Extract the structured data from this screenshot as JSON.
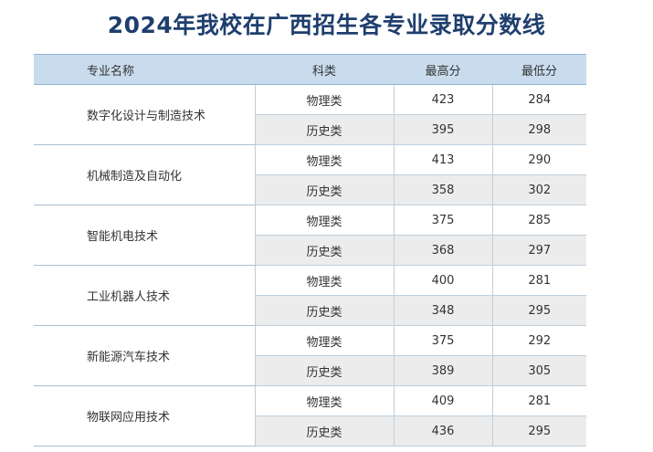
{
  "title": "2024年我校在广西招生各专业录取分数线",
  "table": {
    "headers": [
      "专业名称",
      "科类",
      "最高分",
      "最低分"
    ],
    "rows": [
      {
        "major": "数字化设计与制造技术",
        "entries": [
          {
            "category": "物理类",
            "max": "423",
            "min": "284"
          },
          {
            "category": "历史类",
            "max": "395",
            "min": "298"
          }
        ]
      },
      {
        "major": "机械制造及自动化",
        "entries": [
          {
            "category": "物理类",
            "max": "413",
            "min": "290"
          },
          {
            "category": "历史类",
            "max": "358",
            "min": "302"
          }
        ]
      },
      {
        "major": "智能机电技术",
        "entries": [
          {
            "category": "物理类",
            "max": "375",
            "min": "285"
          },
          {
            "category": "历史类",
            "max": "368",
            "min": "297"
          }
        ]
      },
      {
        "major": "工业机器人技术",
        "entries": [
          {
            "category": "物理类",
            "max": "400",
            "min": "281"
          },
          {
            "category": "历史类",
            "max": "348",
            "min": "295"
          }
        ]
      },
      {
        "major": "新能源汽车技术",
        "entries": [
          {
            "category": "物理类",
            "max": "375",
            "min": "292"
          },
          {
            "category": "历史类",
            "max": "389",
            "min": "305"
          }
        ]
      },
      {
        "major": "物联网应用技术",
        "entries": [
          {
            "category": "物理类",
            "max": "409",
            "min": "281"
          },
          {
            "category": "历史类",
            "max": "436",
            "min": "295"
          }
        ]
      }
    ]
  },
  "colors": {
    "title": "#1f3f6e",
    "header_bg": "#c9dced",
    "alt_row_bg": "#ececec",
    "border": "#bfcfdd"
  }
}
